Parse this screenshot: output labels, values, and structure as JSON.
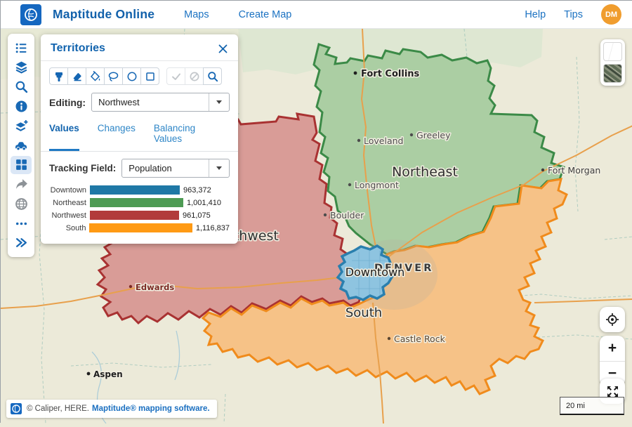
{
  "navbar": {
    "brand": "Maptitude Online",
    "menu": [
      {
        "label": "Maps"
      },
      {
        "label": "Create Map"
      }
    ],
    "right_menu": [
      {
        "label": "Help"
      },
      {
        "label": "Tips"
      }
    ],
    "avatar_initials": "DM",
    "avatar_color": "#f09d2e"
  },
  "sidebar": {
    "items": [
      {
        "name": "legend",
        "icon": "list-icon"
      },
      {
        "name": "layers",
        "icon": "layers-icon"
      },
      {
        "name": "search",
        "icon": "search-icon"
      },
      {
        "name": "info",
        "icon": "info-icon"
      },
      {
        "name": "add-layer",
        "icon": "add-layer-icon"
      },
      {
        "name": "routing",
        "icon": "car-icon"
      },
      {
        "name": "territories",
        "icon": "grid-icon",
        "active": true
      },
      {
        "name": "share",
        "icon": "share-icon"
      },
      {
        "name": "web",
        "icon": "globe-icon"
      },
      {
        "name": "more",
        "icon": "ellipsis-icon"
      },
      {
        "name": "collapse",
        "icon": "double-chevron-icon"
      }
    ]
  },
  "territories_panel": {
    "title": "Territories",
    "tools": [
      "paintbrush",
      "eraser",
      "fill-bucket",
      "lasso-select",
      "circle-select",
      "rectangle-select",
      "confirm",
      "cancel",
      "zoom-select"
    ],
    "editing_label": "Editing:",
    "editing_value": "Northwest",
    "tabs": [
      {
        "label": "Values",
        "active": true
      },
      {
        "label": "Changes",
        "active": false
      },
      {
        "label": "Balancing Values",
        "active": false
      }
    ],
    "tracking_label": "Tracking Field:",
    "tracking_value": "Population"
  },
  "chart_data": {
    "type": "bar",
    "orientation": "horizontal",
    "title": "",
    "categories": [
      "Downtown",
      "Northeast",
      "Northwest",
      "South"
    ],
    "values": [
      963372,
      1001410,
      961075,
      1116837
    ],
    "value_labels": [
      "963,372",
      "1,001,410",
      "961,075",
      "1,116,837"
    ],
    "colors": [
      "#1f78a6",
      "#4e9b54",
      "#b23b3b",
      "#ff9a14"
    ],
    "max": 1116837
  },
  "map": {
    "territory_labels": [
      "Northwest",
      "Northeast",
      "South",
      "Downtown"
    ],
    "metro_label": "DENVER",
    "cities": [
      "Fort Collins",
      "Loveland",
      "Greeley",
      "Fort Morgan",
      "Longmont",
      "Boulder",
      "Edwards",
      "Castle Rock",
      "Aspen"
    ],
    "territory_colors": {
      "northwest_fill": "#d99c97",
      "northwest_border": "#a93232",
      "northeast_fill": "#abcea3",
      "northeast_border": "#3b8a47",
      "south_fill": "#f6c287",
      "south_border": "#f08b1c",
      "downtown_fill": "#8ec4e0",
      "downtown_border": "#2a7fae"
    }
  },
  "map_controls": {
    "zoom_in": "+",
    "zoom_out": "−"
  },
  "scale_bar": {
    "label": "20 mi"
  },
  "attribution": {
    "copyright": "© Caliper, HERE.",
    "product": "Maptitude® mapping software."
  }
}
